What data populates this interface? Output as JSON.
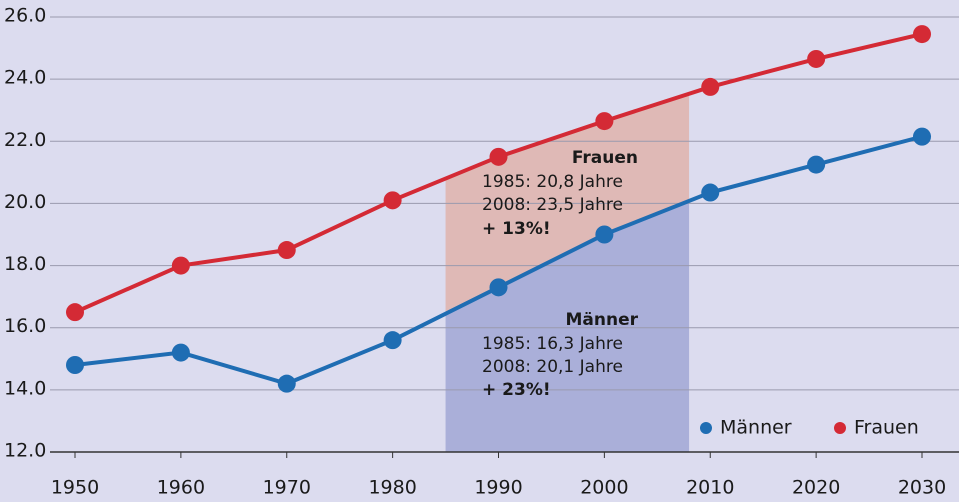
{
  "chart_data": {
    "type": "line",
    "x": [
      1950,
      1960,
      1970,
      1980,
      1990,
      2000,
      2010,
      2020,
      2030
    ],
    "series": [
      {
        "name": "Männer",
        "color": "#1f6db3",
        "values": [
          14.8,
          15.2,
          14.2,
          15.6,
          17.3,
          19.0,
          20.35,
          21.25,
          22.15
        ]
      },
      {
        "name": "Frauen",
        "color": "#d42a35",
        "values": [
          16.5,
          18.0,
          18.5,
          20.1,
          21.5,
          22.65,
          23.75,
          24.65,
          25.45
        ]
      }
    ],
    "xlim": [
      1950,
      2030
    ],
    "xticks": [
      1950,
      1960,
      1970,
      1980,
      1990,
      2000,
      2010,
      2020,
      2030
    ],
    "ylim": [
      12,
      26
    ],
    "yticks": [
      {
        "value": 12,
        "label": "12.0"
      },
      {
        "value": 14,
        "label": "14.0"
      },
      {
        "value": 16,
        "label": "16.0"
      },
      {
        "value": 18,
        "label": "18.0"
      },
      {
        "value": 20,
        "label": "20.0"
      },
      {
        "value": 22,
        "label": "22.0"
      },
      {
        "value": 24,
        "label": "24.0"
      },
      {
        "value": 26,
        "label": "26.0"
      }
    ],
    "grid": true,
    "legend": "lower right",
    "highlight_x": [
      1985,
      2008
    ],
    "highlight_colors": [
      "#aaafd9",
      "#dfb9b6"
    ],
    "annotations": [
      {
        "title": "Frauen",
        "lines": [
          "1985: 20,8 Jahre",
          "2008: 23,5 Jahre"
        ],
        "change": "+ 13%!"
      },
      {
        "title": "Männer",
        "lines": [
          "1985: 16,3 Jahre",
          "2008: 20,1 Jahre"
        ],
        "change": "+ 23%!"
      }
    ]
  }
}
